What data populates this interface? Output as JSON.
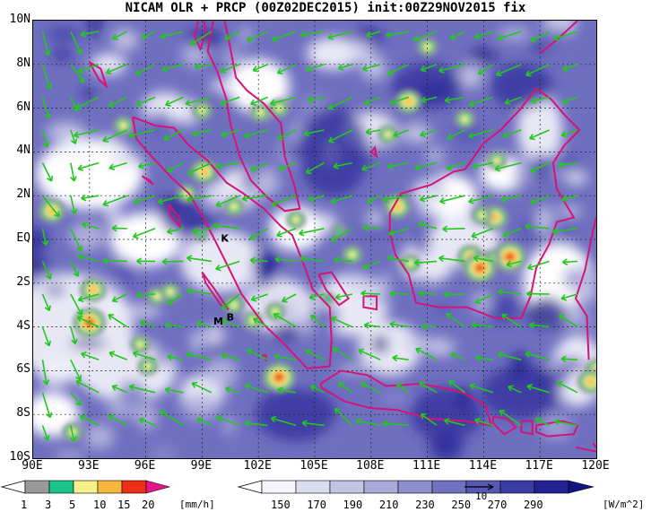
{
  "title": "NICAM OLR + PRCP (00Z02DEC2015) init:00Z29NOV2015 fix",
  "lat_labels": [
    "10N",
    "8N",
    "6N",
    "4N",
    "2N",
    "EQ",
    "2S",
    "4S",
    "6S",
    "8S",
    "10S"
  ],
  "lon_labels": [
    "90E",
    "93E",
    "96E",
    "99E",
    "102E",
    "105E",
    "108E",
    "111E",
    "114E",
    "117E",
    "120E"
  ],
  "map_markers": [
    {
      "label": "K",
      "lon": 100.0,
      "lat": -0.1
    },
    {
      "label": "M",
      "lat": -3.9,
      "lon": 99.6
    },
    {
      "label": "B",
      "lat": -3.7,
      "lon": 100.3
    }
  ],
  "precip_colorbar": {
    "ticks": [
      "1",
      "3",
      "5",
      "10",
      "15",
      "20"
    ],
    "unit": "[mm/h]",
    "colors": [
      "#999999",
      "#19c389",
      "#f7f08a",
      "#f7b73c",
      "#ee2f16",
      "#e7168f"
    ]
  },
  "olr_colorbar": {
    "ticks": [
      "150",
      "170",
      "190",
      "210",
      "230",
      "250",
      "270",
      "290"
    ],
    "unit": "[W/m^2]",
    "colors": [
      "#f5f5fb",
      "#dcdcef",
      "#c3c3e4",
      "#aaaad9",
      "#8f8fce",
      "#7171c2",
      "#5757b5",
      "#3b3ba4",
      "#232396",
      "#14147e"
    ]
  },
  "wind_reference_label": "10",
  "colors": {
    "coast": "#d41477",
    "wind": "#22c81e",
    "grid": "#000000"
  }
}
